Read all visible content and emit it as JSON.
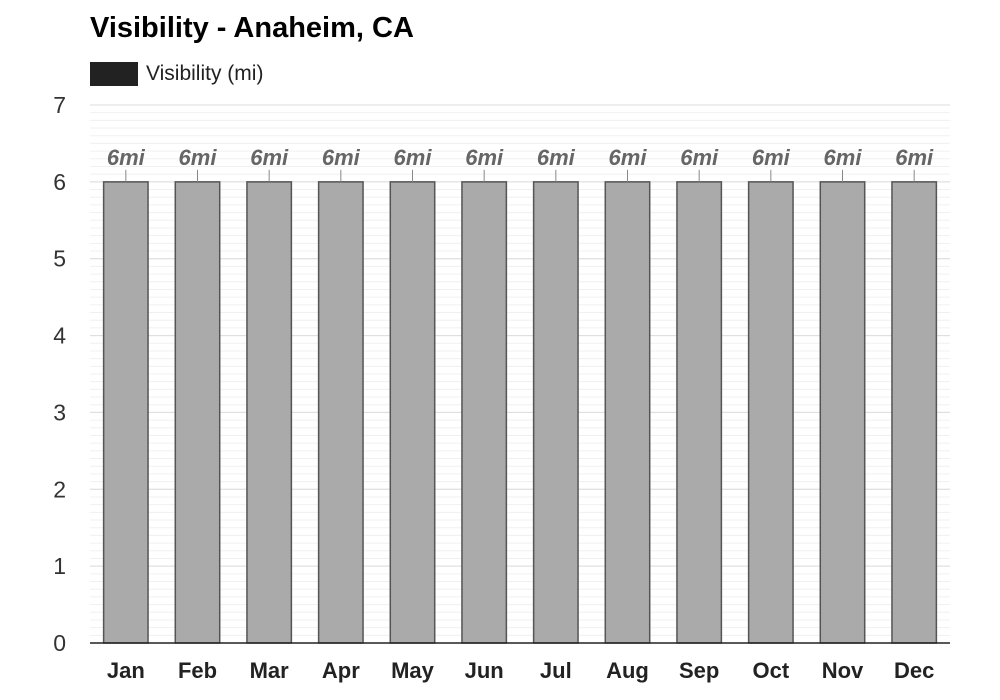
{
  "chart_data": {
    "type": "bar",
    "title": "Visibility - Anaheim, CA",
    "legend": [
      {
        "name": "Visibility (mi)",
        "color": "#222222"
      }
    ],
    "legend_position": "top-left",
    "categories": [
      "Jan",
      "Feb",
      "Mar",
      "Apr",
      "May",
      "Jun",
      "Jul",
      "Aug",
      "Sep",
      "Oct",
      "Nov",
      "Dec"
    ],
    "series": [
      {
        "name": "Visibility (mi)",
        "values": [
          6,
          6,
          6,
          6,
          6,
          6,
          6,
          6,
          6,
          6,
          6,
          6
        ],
        "labels": [
          "6mi",
          "6mi",
          "6mi",
          "6mi",
          "6mi",
          "6mi",
          "6mi",
          "6mi",
          "6mi",
          "6mi",
          "6mi",
          "6mi"
        ],
        "color": "#aaaaaa",
        "edge_color": "#555555"
      }
    ],
    "y_ticks": [
      "0",
      "1",
      "2",
      "3",
      "4",
      "5",
      "6",
      "7"
    ],
    "xlabel": "",
    "ylabel": "",
    "ylim": [
      0,
      7
    ],
    "grid": true
  }
}
